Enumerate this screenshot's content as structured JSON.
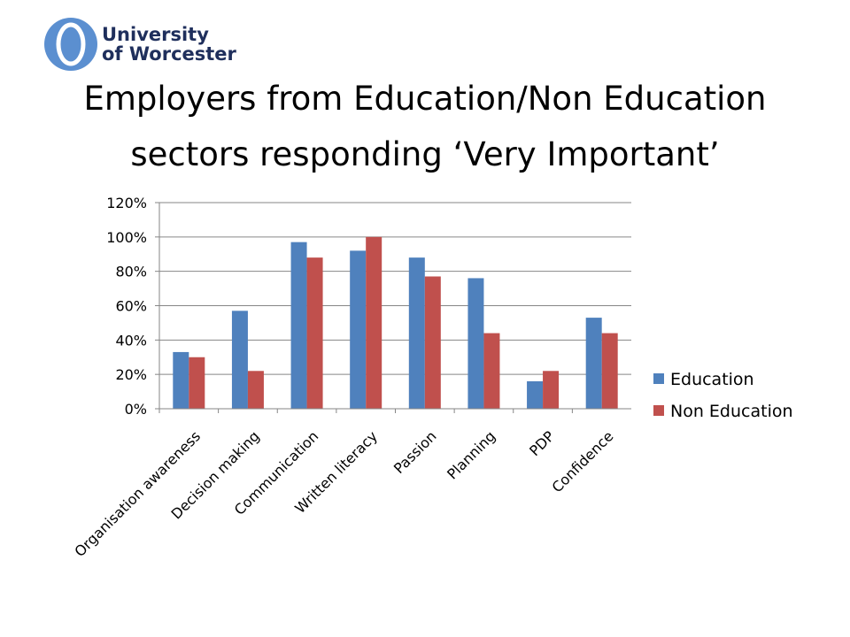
{
  "logo": [
    "University",
    "of Worcester"
  ],
  "chart_data": {
    "type": "bar",
    "title": "Employers from Education/Non Education sectors responding ‘Very Important’",
    "categories": [
      "Organisation awareness",
      "Decision making",
      "Communication",
      "Written literacy",
      "Passion",
      "Planning",
      "PDP",
      "Confidence"
    ],
    "series": [
      {
        "name": "Education",
        "color": "#4f81bd",
        "values": [
          33,
          57,
          97,
          92,
          88,
          76,
          16,
          53
        ]
      },
      {
        "name": "Non Education",
        "color": "#c0504d",
        "values": [
          30,
          22,
          88,
          100,
          77,
          44,
          22,
          44
        ]
      }
    ],
    "ylim": [
      0,
      120
    ],
    "yticks": [
      {
        "value": 0,
        "label": "0%"
      },
      {
        "value": 20,
        "label": "20%"
      },
      {
        "value": 40,
        "label": "40%"
      },
      {
        "value": 60,
        "label": "60%"
      },
      {
        "value": 80,
        "label": "80%"
      },
      {
        "value": 100,
        "label": "100%"
      },
      {
        "value": 120,
        "label": "120%"
      }
    ],
    "grid": true,
    "legend": "right"
  }
}
